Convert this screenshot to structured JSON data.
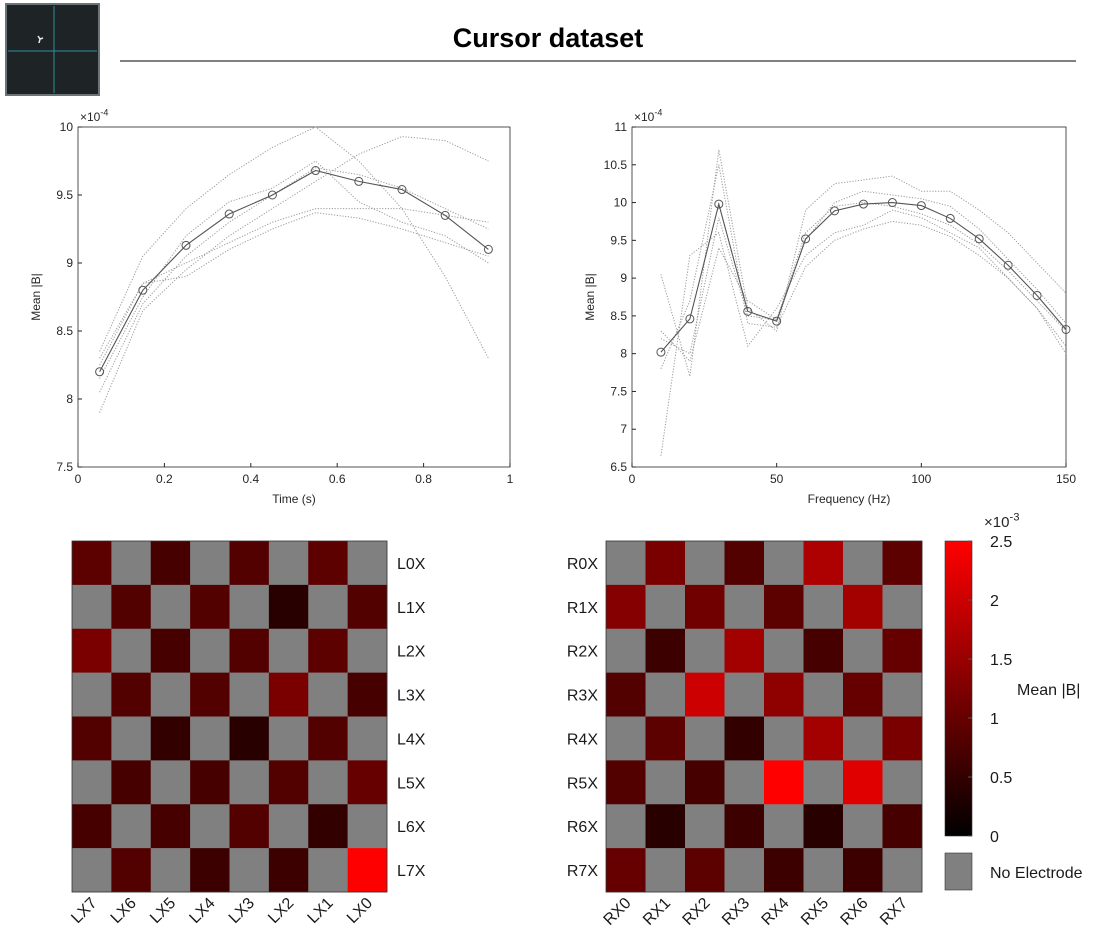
{
  "title": "Cursor dataset",
  "colorbar": {
    "colors": [
      "#000000",
      "#ff0000"
    ],
    "clim": [
      0,
      2.5
    ],
    "cticks": [
      0,
      0.5,
      1,
      1.5,
      2,
      2.5
    ],
    "label": "Mean |B|",
    "multiplier": {
      "base": "×10",
      "exponent": "-3"
    },
    "null_color": "#808080",
    "null_label": "No Electrode"
  },
  "chart_data": [
    {
      "type": "line",
      "xlabel": "Time (s)",
      "ylabel": "Mean |B|",
      "y_multiplier": {
        "base": "×10",
        "exponent": "-4"
      },
      "x": [
        0.05,
        0.15,
        0.25,
        0.35,
        0.45,
        0.55,
        0.65,
        0.75,
        0.85,
        0.95
      ],
      "xlim": [
        0,
        1
      ],
      "xticks": [
        0,
        0.2,
        0.4,
        0.6,
        0.8,
        1
      ],
      "ylim": [
        7.5,
        10
      ],
      "yticks": [
        7.5,
        8,
        8.5,
        9,
        9.5,
        10
      ],
      "grid": false,
      "series": [
        {
          "color": "#9a9a9a",
          "dash": "dotted",
          "values": [
            8.35,
            9.05,
            9.4,
            9.65,
            9.85,
            10.0,
            9.75,
            9.4,
            8.9,
            8.3
          ]
        },
        {
          "color": "#9a9a9a",
          "dash": "dotted",
          "values": [
            7.9,
            8.65,
            8.95,
            9.2,
            9.4,
            9.6,
            9.8,
            9.93,
            9.9,
            9.75
          ]
        },
        {
          "color": "#9a9a9a",
          "dash": "dotted",
          "values": [
            8.05,
            8.7,
            9.05,
            9.3,
            9.5,
            9.7,
            9.65,
            9.55,
            9.4,
            9.25
          ]
        },
        {
          "color": "#9a9a9a",
          "dash": "dotted",
          "values": [
            8.15,
            8.75,
            9.2,
            9.45,
            9.55,
            9.75,
            9.45,
            9.3,
            9.2,
            9.0
          ]
        },
        {
          "color": "#9a9a9a",
          "dash": "dotted",
          "values": [
            8.3,
            8.85,
            9.0,
            9.15,
            9.3,
            9.4,
            9.4,
            9.4,
            9.35,
            9.3
          ]
        },
        {
          "color": "#9a9a9a",
          "dash": "dotted",
          "values": [
            8.25,
            8.85,
            8.9,
            9.1,
            9.25,
            9.37,
            9.33,
            9.25,
            9.15,
            9.05
          ]
        },
        {
          "color": "#555555",
          "dash": "solid",
          "marker": "circle",
          "values": [
            8.2,
            8.8,
            9.13,
            9.36,
            9.5,
            9.68,
            9.6,
            9.54,
            9.35,
            9.1
          ]
        }
      ]
    },
    {
      "type": "line",
      "xlabel": "Frequency (Hz)",
      "ylabel": "Mean |B|",
      "y_multiplier": {
        "base": "×10",
        "exponent": "-4"
      },
      "x": [
        10,
        20,
        30,
        40,
        50,
        60,
        70,
        80,
        90,
        100,
        110,
        120,
        130,
        140,
        150
      ],
      "xlim": [
        0,
        150
      ],
      "xticks": [
        0,
        50,
        100,
        150
      ],
      "ylim": [
        6.5,
        11
      ],
      "yticks": [
        6.5,
        7,
        7.5,
        8,
        8.5,
        9,
        9.5,
        10,
        10.5,
        11
      ],
      "grid": false,
      "series": [
        {
          "color": "#9a9a9a",
          "dash": "dotted",
          "values": [
            9.05,
            7.7,
            10.7,
            8.6,
            8.3,
            9.9,
            10.25,
            10.3,
            10.35,
            10.15,
            10.15,
            9.9,
            9.6,
            9.2,
            8.8
          ]
        },
        {
          "color": "#9a9a9a",
          "dash": "dotted",
          "values": [
            6.65,
            9.3,
            9.6,
            8.1,
            8.6,
            9.3,
            9.6,
            9.7,
            9.9,
            9.8,
            9.6,
            9.4,
            9.0,
            8.6,
            8.0
          ]
        },
        {
          "color": "#9a9a9a",
          "dash": "dotted",
          "values": [
            8.3,
            7.9,
            9.4,
            8.7,
            8.45,
            9.6,
            9.95,
            10.0,
            9.95,
            9.85,
            9.7,
            9.45,
            9.1,
            8.7,
            8.3
          ]
        },
        {
          "color": "#9a9a9a",
          "dash": "dotted",
          "values": [
            7.8,
            8.7,
            10.5,
            8.4,
            8.35,
            9.15,
            9.5,
            9.65,
            9.75,
            9.7,
            9.55,
            9.3,
            9.0,
            8.6,
            8.1
          ]
        },
        {
          "color": "#9a9a9a",
          "dash": "dotted",
          "values": [
            8.2,
            8.0,
            9.8,
            8.5,
            8.45,
            9.5,
            10.0,
            10.15,
            10.1,
            10.05,
            9.95,
            9.65,
            9.25,
            8.85,
            8.4
          ]
        },
        {
          "color": "#555555",
          "dash": "solid",
          "marker": "circle",
          "values": [
            8.02,
            8.46,
            9.98,
            8.56,
            8.43,
            9.52,
            9.89,
            9.98,
            10.0,
            9.96,
            9.79,
            9.52,
            9.17,
            8.77,
            8.32
          ]
        }
      ]
    },
    {
      "type": "heatmap",
      "row_label_side": "right",
      "columns": [
        "LX7",
        "LX6",
        "LX5",
        "LX4",
        "LX3",
        "LX2",
        "LX1",
        "LX0"
      ],
      "rows": [
        "L0X",
        "L1X",
        "L2X",
        "L3X",
        "L4X",
        "L5X",
        "L6X",
        "L7X"
      ],
      "values": [
        [
          0.9,
          null,
          0.7,
          null,
          0.8,
          null,
          0.9,
          null
        ],
        [
          null,
          0.8,
          null,
          0.8,
          null,
          0.4,
          null,
          0.8
        ],
        [
          1.2,
          null,
          0.7,
          null,
          0.8,
          null,
          0.9,
          null
        ],
        [
          null,
          0.8,
          null,
          0.8,
          null,
          1.2,
          null,
          0.7
        ],
        [
          0.8,
          null,
          0.5,
          null,
          0.4,
          null,
          0.8,
          null
        ],
        [
          null,
          0.7,
          null,
          0.7,
          null,
          0.8,
          null,
          1.0
        ],
        [
          0.7,
          null,
          0.7,
          null,
          0.8,
          null,
          0.5,
          null
        ],
        [
          null,
          0.8,
          null,
          0.6,
          null,
          0.6,
          null,
          2.5
        ]
      ]
    },
    {
      "type": "heatmap",
      "row_label_side": "left",
      "columns": [
        "RX0",
        "RX1",
        "RX2",
        "RX3",
        "RX4",
        "RX5",
        "RX6",
        "RX7"
      ],
      "rows": [
        "R0X",
        "R1X",
        "R2X",
        "R3X",
        "R4X",
        "R5X",
        "R6X",
        "R7X"
      ],
      "values": [
        [
          null,
          1.2,
          null,
          0.8,
          null,
          1.7,
          null,
          0.9
        ],
        [
          1.3,
          null,
          1.1,
          null,
          0.9,
          null,
          1.6,
          null
        ],
        [
          null,
          0.6,
          null,
          1.6,
          null,
          0.7,
          null,
          1.0
        ],
        [
          0.8,
          null,
          2.0,
          null,
          1.4,
          null,
          1.0,
          null
        ],
        [
          null,
          0.9,
          null,
          0.5,
          null,
          1.6,
          null,
          1.2
        ],
        [
          0.8,
          null,
          0.7,
          null,
          2.5,
          null,
          2.2,
          null
        ],
        [
          null,
          0.4,
          null,
          0.6,
          null,
          0.4,
          null,
          0.7
        ],
        [
          1.0,
          null,
          0.9,
          null,
          0.6,
          null,
          0.6,
          null
        ]
      ]
    }
  ]
}
